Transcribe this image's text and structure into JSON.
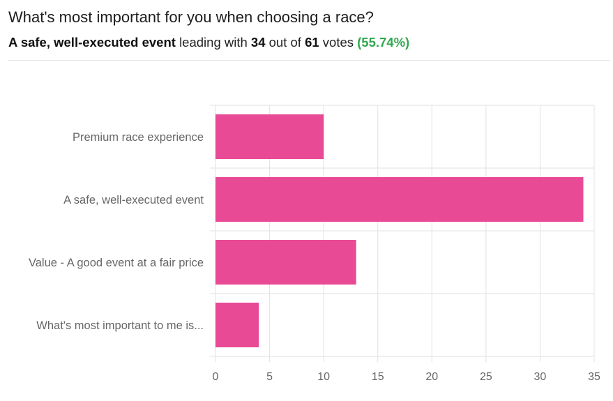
{
  "header": {
    "question": "What's most important for you when choosing a race?",
    "leader": "A safe, well-executed event",
    "leading_with": "leading with",
    "leader_votes": "34",
    "out_of": "out of",
    "total_votes": "61",
    "votes_word": "votes",
    "leader_percent": "(55.74%)"
  },
  "colors": {
    "bar": "#e84a96",
    "grid": "#e2e2e2",
    "percent": "#2fa84f"
  },
  "chart_data": {
    "type": "bar",
    "orientation": "horizontal",
    "categories": [
      "Premium race experience",
      "A safe, well-executed event",
      "Value - A good event at a fair price",
      "What's most important to me is..."
    ],
    "values": [
      10,
      34,
      13,
      4
    ],
    "xlim": [
      0,
      35
    ],
    "xticks": [
      0,
      5,
      10,
      15,
      20,
      25,
      30,
      35
    ],
    "grid": true,
    "title": "",
    "xlabel": "",
    "ylabel": ""
  }
}
